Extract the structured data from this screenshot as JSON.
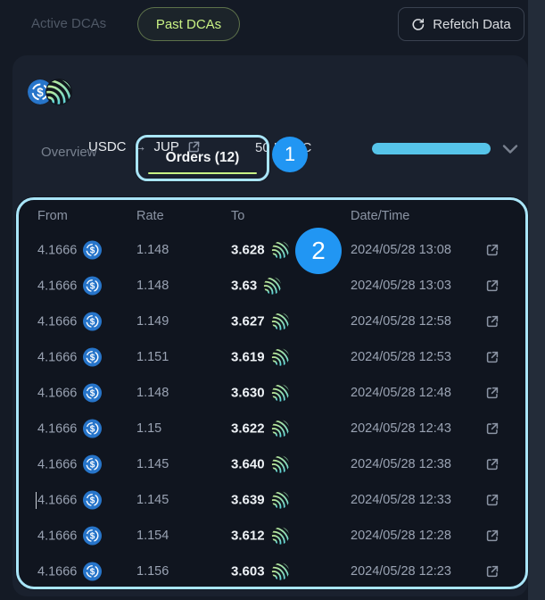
{
  "topbar": {
    "active_dcas_label": "Active DCAs",
    "past_dcas_label": "Past DCAs",
    "refetch_label": "Refetch Data"
  },
  "card": {
    "pair": {
      "from_token": "USDC",
      "arrow": "→",
      "to_token": "JUP"
    },
    "amount": "50 USDC",
    "progress_percent": 100,
    "tabs": {
      "overview_label": "Overview",
      "orders_label": "Orders (12)"
    }
  },
  "annotations": {
    "badge1": "1",
    "badge2": "2"
  },
  "table": {
    "headers": [
      "From",
      "Rate",
      "To",
      "Date/Time"
    ],
    "rows": [
      {
        "from": "4.1666",
        "rate": "1.148",
        "to": "3.628",
        "datetime": "2024/05/28 13:08"
      },
      {
        "from": "4.1666",
        "rate": "1.148",
        "to": "3.63",
        "datetime": "2024/05/28 13:03"
      },
      {
        "from": "4.1666",
        "rate": "1.149",
        "to": "3.627",
        "datetime": "2024/05/28 12:58"
      },
      {
        "from": "4.1666",
        "rate": "1.151",
        "to": "3.619",
        "datetime": "2024/05/28 12:53"
      },
      {
        "from": "4.1666",
        "rate": "1.148",
        "to": "3.630",
        "datetime": "2024/05/28 12:48"
      },
      {
        "from": "4.1666",
        "rate": "1.15",
        "to": "3.622",
        "datetime": "2024/05/28 12:43"
      },
      {
        "from": "4.1666",
        "rate": "1.145",
        "to": "3.640",
        "datetime": "2024/05/28 12:38"
      },
      {
        "from": "4.1666",
        "rate": "1.145",
        "to": "3.639",
        "datetime": "2024/05/28 12:33"
      },
      {
        "from": "4.1666",
        "rate": "1.154",
        "to": "3.612",
        "datetime": "2024/05/28 12:28"
      },
      {
        "from": "4.1666",
        "rate": "1.156",
        "to": "3.603",
        "datetime": "2024/05/28 12:23"
      }
    ]
  },
  "icons": {
    "refresh-icon": "circular refresh arrow",
    "external-link-icon": "box with arrow ↗",
    "chevron-down-icon": "⌄",
    "arrow-right-icon": "→",
    "usdc-coin-icon": "blue circle with $",
    "jup-coin-icon": "dark circle with lime-to-cyan wave arcs"
  },
  "colors": {
    "accent_lime": "#c9f284",
    "accent_cyan": "#56c4e9",
    "annotation_cyan": "#a9e5f8",
    "badge_blue": "#2196f3",
    "usdc_blue": "#2775ca",
    "jup_gradient_top": "#d9f28b",
    "jup_gradient_bottom": "#41c9e8"
  }
}
